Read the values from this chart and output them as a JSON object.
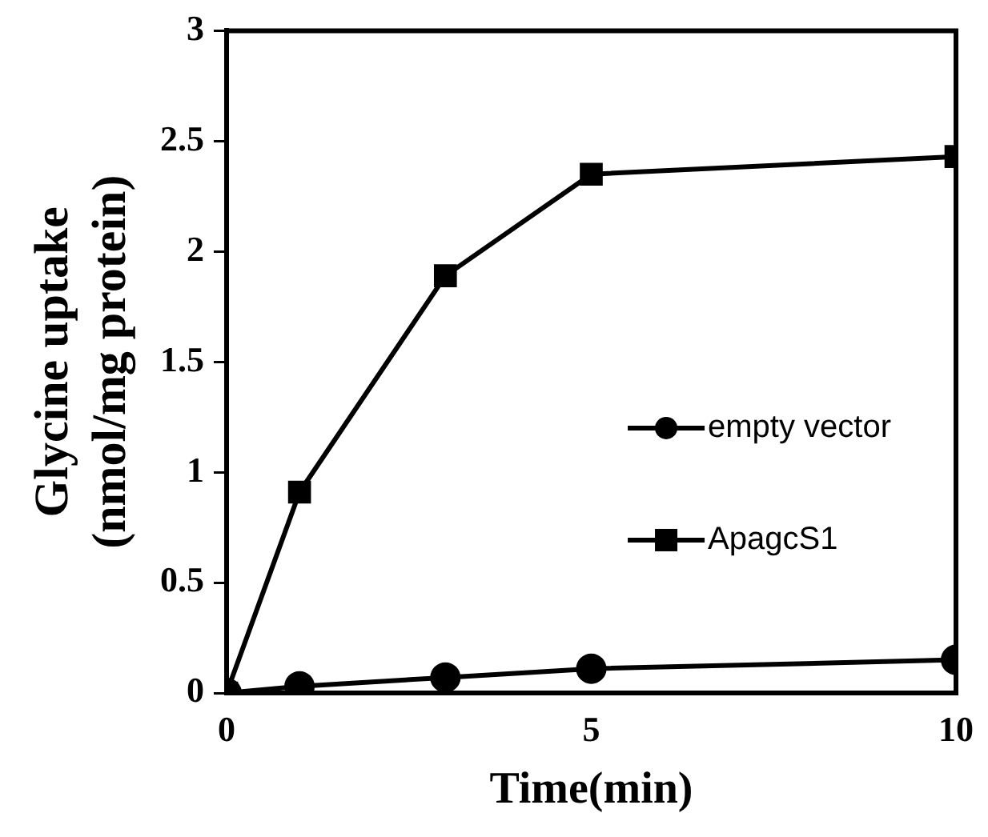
{
  "chart_data": {
    "type": "line",
    "xlabel": "Time(min)",
    "ylabel": "Glycine uptake (nmol/mg protein)",
    "x": [
      0,
      1,
      3,
      5,
      10
    ],
    "series": [
      {
        "name": "empty vector",
        "color": "#000000",
        "marker": "circle",
        "values": [
          0,
          0.03,
          0.07,
          0.11,
          0.15
        ]
      },
      {
        "name": "ApagcS1",
        "color": "#000000",
        "marker": "square",
        "values": [
          0,
          0.91,
          1.89,
          2.35,
          2.43
        ]
      }
    ],
    "xlim": [
      0,
      10
    ],
    "xticks": [
      0,
      5,
      10
    ],
    "ylim": [
      0,
      3
    ],
    "yticks": [
      0,
      0.5,
      1,
      1.5,
      2,
      2.5,
      3
    ],
    "grid": false,
    "legend": "right",
    "line_style": "solid"
  }
}
